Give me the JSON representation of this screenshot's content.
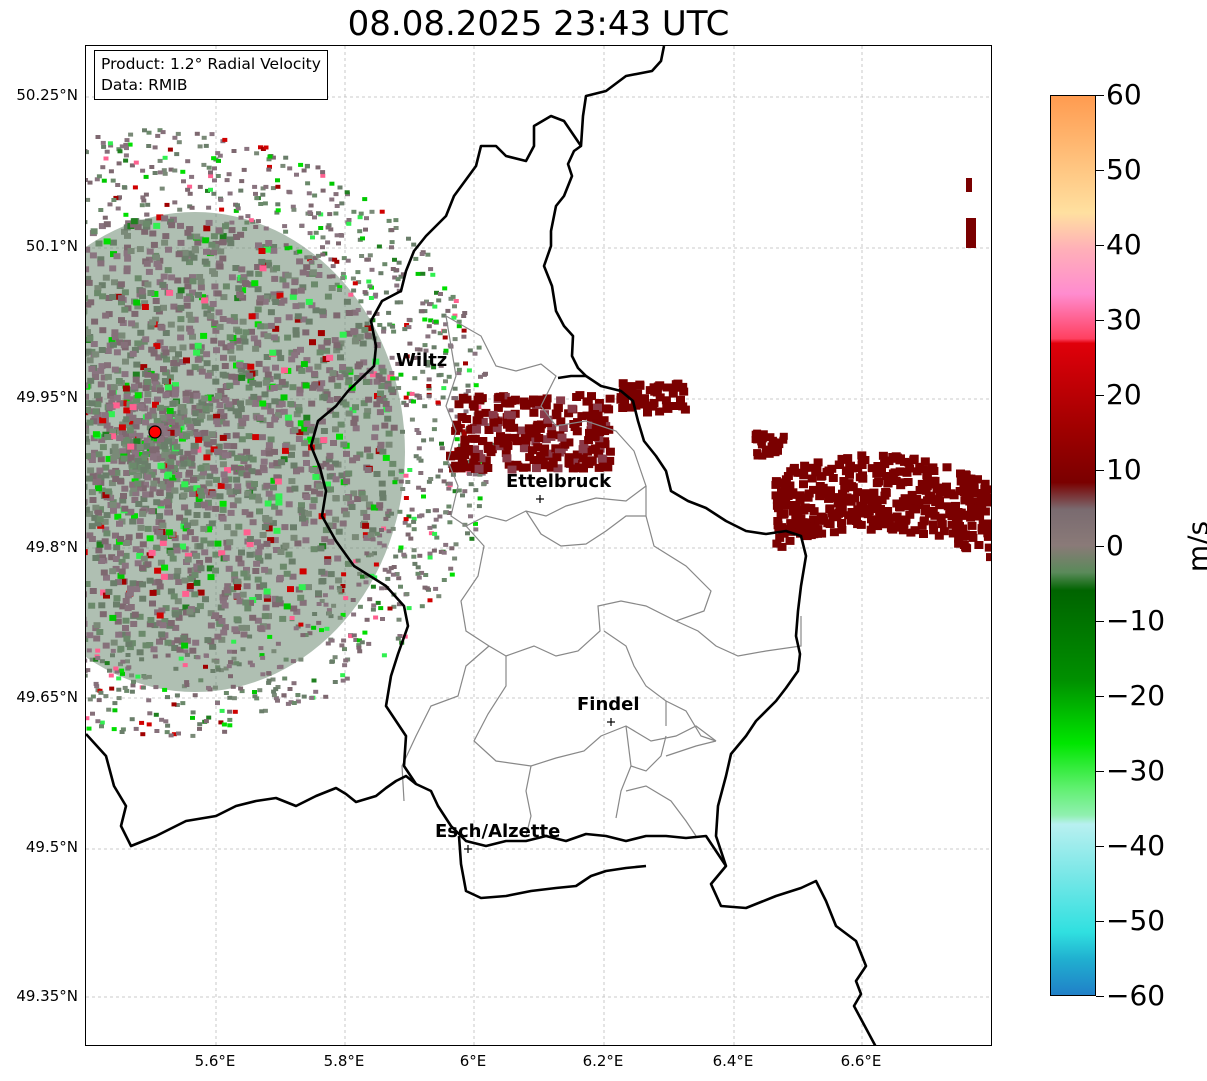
{
  "title": "08.08.2025 23:43 UTC",
  "info": {
    "product": "Product: 1.2° Radial Velocity",
    "source": "Data: RMIB"
  },
  "axes": {
    "lat_ticks": [
      "50.25°N",
      "50.1°N",
      "49.95°N",
      "49.8°N",
      "49.65°N",
      "49.5°N",
      "49.35°N"
    ],
    "lon_ticks": [
      "5.6°E",
      "5.8°E",
      "6°E",
      "6.2°E",
      "6.4°E",
      "6.6°E"
    ]
  },
  "cities": [
    {
      "name": "Wiltz"
    },
    {
      "name": "Ettelbruck"
    },
    {
      "name": "Findel"
    },
    {
      "name": "Esch/Alzette"
    }
  ],
  "colorbar": {
    "unit": "m/s",
    "min": -60,
    "max": 60,
    "ticks": [
      "60",
      "50",
      "40",
      "30",
      "20",
      "10",
      "0",
      "−10",
      "−20",
      "−30",
      "−40",
      "−50",
      "−60"
    ],
    "colors": {
      "outbound_high": "#ff9b50",
      "outbound_mid": "#ff8ccf",
      "outbound_red": "#e0000a",
      "outbound_low": "#7a0000",
      "near_zero": "#7a6b70",
      "inbound_low": "#006400",
      "inbound_green": "#00e600",
      "inbound_light": "#90f0b0",
      "inbound_cyan": "#30e0e0",
      "inbound_blue": "#2080c8"
    }
  }
}
